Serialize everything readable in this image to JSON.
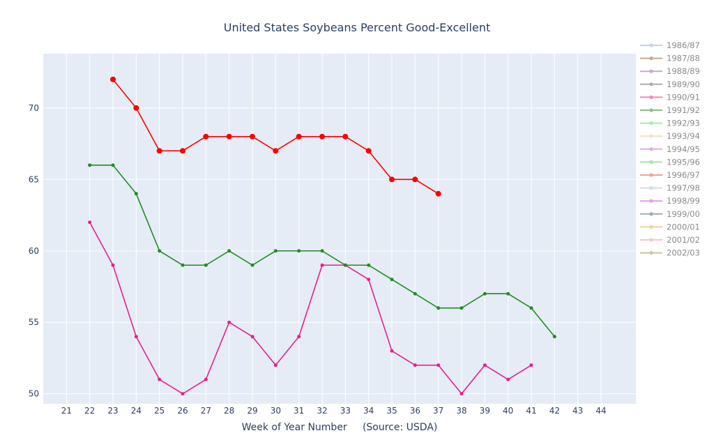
{
  "chart_data": {
    "type": "line",
    "title": "United States Soybeans Percent Good-Excellent",
    "xlabel": "Week of Year Number     (Source: USDA)",
    "ylabel": "",
    "xlim": [
      20,
      45.5
    ],
    "ylim": [
      49.3,
      73.8
    ],
    "x_ticks": [
      21,
      22,
      23,
      24,
      25,
      26,
      27,
      28,
      29,
      30,
      31,
      32,
      33,
      34,
      35,
      36,
      37,
      38,
      39,
      40,
      41,
      42,
      43,
      44
    ],
    "y_ticks": [
      50,
      55,
      60,
      65,
      70
    ],
    "grid": true,
    "legend_position": "right",
    "legend": [
      {
        "name": "1986/87",
        "color": "#c6d2e6",
        "active": false
      },
      {
        "name": "1987/88",
        "color": "#c8a88a",
        "active": false
      },
      {
        "name": "1988/89",
        "color": "#c8a8d0",
        "active": false
      },
      {
        "name": "1989/90",
        "color": "#a8aeb6",
        "active": false
      },
      {
        "name": "1990/91",
        "color": "#f08ab8",
        "active": true
      },
      {
        "name": "1991/92",
        "color": "#8cbc8c",
        "active": true
      },
      {
        "name": "1992/93",
        "color": "#a8e8a8",
        "active": false
      },
      {
        "name": "1993/94",
        "color": "#f4e0c2",
        "active": false
      },
      {
        "name": "1994/95",
        "color": "#e2a8e2",
        "active": false
      },
      {
        "name": "1995/96",
        "color": "#a8e4a8",
        "active": false
      },
      {
        "name": "1996/97",
        "color": "#f0a098",
        "active": false
      },
      {
        "name": "1997/98",
        "color": "#d8d8ec",
        "active": false
      },
      {
        "name": "1998/99",
        "color": "#e89ae8",
        "active": false
      },
      {
        "name": "1999/00",
        "color": "#a0aab0",
        "active": false
      },
      {
        "name": "2000/01",
        "color": "#ecd49a",
        "active": false
      },
      {
        "name": "2001/02",
        "color": "#f0c6c6",
        "active": false
      },
      {
        "name": "2002/03",
        "color": "#c8c8a0",
        "active": false
      }
    ],
    "series": [
      {
        "name": "1990/91",
        "color": "#e91e8c",
        "marker_size": 2.5,
        "x": [
          22,
          23,
          24,
          25,
          26,
          27,
          28,
          29,
          30,
          31,
          32,
          33,
          34,
          35,
          36,
          37,
          38,
          39,
          40,
          41
        ],
        "values": [
          62,
          59,
          54,
          51,
          50,
          51,
          55,
          54,
          52,
          54,
          59,
          59,
          58,
          53,
          52,
          52,
          50,
          52,
          51,
          52
        ]
      },
      {
        "name": "1991/92",
        "color": "#1f8c1f",
        "marker_size": 2.5,
        "x": [
          22,
          23,
          24,
          25,
          26,
          27,
          28,
          29,
          30,
          31,
          32,
          33,
          34,
          35,
          36,
          37,
          38,
          39,
          40,
          41,
          42
        ],
        "values": [
          66,
          66,
          64,
          60,
          59,
          59,
          60,
          59,
          60,
          60,
          60,
          59,
          59,
          58,
          57,
          56,
          56,
          57,
          57,
          56,
          54
        ]
      },
      {
        "name": "",
        "color": "#ff0000",
        "marker_size": 4,
        "x": [
          23,
          24,
          25,
          26,
          27,
          28,
          29,
          30,
          31,
          32,
          33,
          34,
          35,
          36,
          37
        ],
        "values": [
          72,
          70,
          67,
          67,
          68,
          68,
          68,
          67,
          68,
          68,
          68,
          67,
          65,
          65,
          64
        ]
      }
    ]
  }
}
